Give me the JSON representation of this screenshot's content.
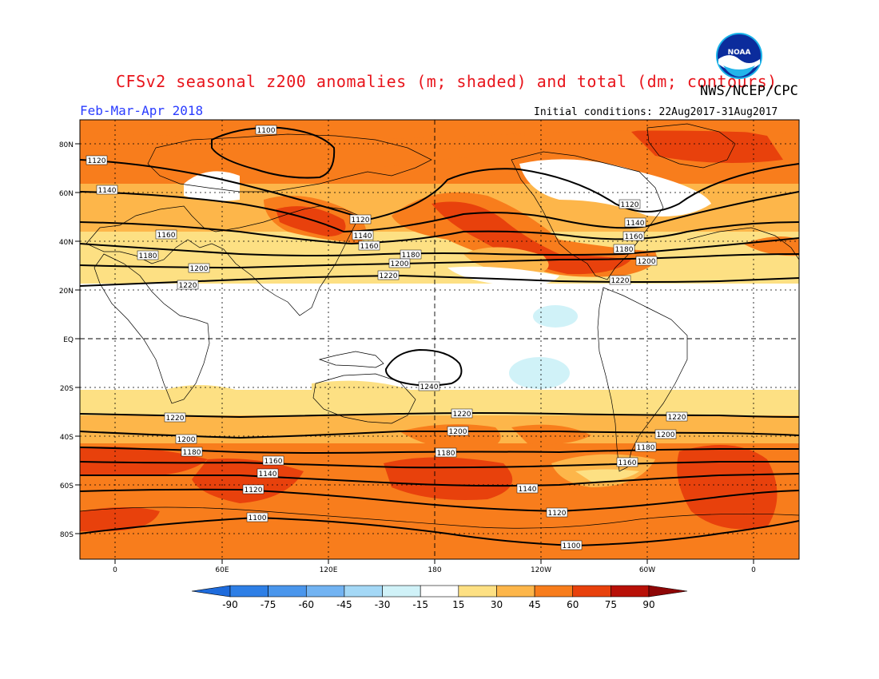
{
  "header": {
    "title": "CFSv2 seasonal z200 anomalies (m; shaded) and total (dm; contours)",
    "agency": "NWS/NCEP/CPC",
    "season": "Feb-Mar-Apr 2018",
    "initial_conditions": "Initial conditions: 22Aug2017-31Aug2017",
    "logo_text": "NOAA"
  },
  "map": {
    "lat_ticks": [
      "80N",
      "60N",
      "40N",
      "20N",
      "EQ",
      "20S",
      "40S",
      "60S",
      "80S"
    ],
    "lon_ticks": [
      "0",
      "60E",
      "120E",
      "180",
      "120W",
      "60W",
      "0"
    ],
    "contours": [
      {
        "label": "1100"
      },
      {
        "label": "1120"
      },
      {
        "label": "1140"
      },
      {
        "label": "1160"
      },
      {
        "label": "1180"
      },
      {
        "label": "1200"
      },
      {
        "label": "1220"
      },
      {
        "label": "1240"
      }
    ]
  },
  "colorbar": {
    "labels": [
      "-90",
      "-75",
      "-60",
      "-45",
      "-30",
      "-15",
      "15",
      "30",
      "45",
      "60",
      "75",
      "90"
    ],
    "colors": [
      "#1e6bdc",
      "#2e7fe6",
      "#4a96ec",
      "#72b3f2",
      "#a4d8f6",
      "#d0f2f8",
      "#ffffff",
      "#fde083",
      "#fdb64a",
      "#f87d1c",
      "#e8410c",
      "#b81007",
      "#8e0606"
    ]
  }
}
